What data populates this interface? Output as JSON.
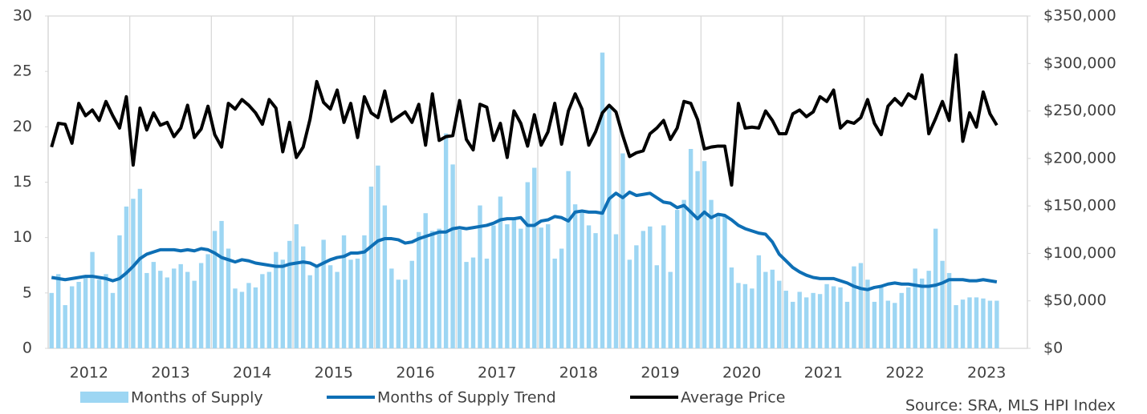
{
  "chart_data": {
    "type": "combo",
    "annotation": "Source: SRA, MLS HPI Index",
    "categories": [
      null,
      null,
      null,
      null,
      null,
      "2012",
      null,
      null,
      null,
      null,
      null,
      null,
      null,
      null,
      null,
      null,
      null,
      "2013",
      null,
      null,
      null,
      null,
      null,
      null,
      null,
      null,
      null,
      null,
      null,
      "2014",
      null,
      null,
      null,
      null,
      null,
      null,
      null,
      null,
      null,
      null,
      null,
      "2015",
      null,
      null,
      null,
      null,
      null,
      null,
      null,
      null,
      null,
      null,
      null,
      "2016",
      null,
      null,
      null,
      null,
      null,
      null,
      null,
      null,
      null,
      null,
      null,
      "2017",
      null,
      null,
      null,
      null,
      null,
      null,
      null,
      null,
      null,
      null,
      null,
      "2018",
      null,
      null,
      null,
      null,
      null,
      null,
      null,
      null,
      null,
      null,
      null,
      "2019",
      null,
      null,
      null,
      null,
      null,
      null,
      null,
      null,
      null,
      null,
      null,
      "2020",
      null,
      null,
      null,
      null,
      null,
      null,
      null,
      null,
      null,
      null,
      null,
      "2021",
      null,
      null,
      null,
      null,
      null,
      null,
      null,
      null,
      null,
      null,
      null,
      "2022",
      null,
      null,
      null,
      null,
      null,
      null,
      null,
      null,
      null,
      null,
      null,
      "2023",
      null,
      null
    ],
    "series": [
      {
        "name": "Months of Supply",
        "type": "bar",
        "color": "#9dd6f3",
        "values": [
          5.0,
          6.7,
          3.9,
          5.6,
          6.0,
          6.5,
          8.7,
          6.2,
          6.7,
          5.0,
          10.2,
          12.8,
          13.5,
          14.4,
          6.8,
          7.8,
          7.0,
          6.4,
          7.2,
          7.6,
          6.9,
          6.1,
          7.7,
          8.5,
          10.6,
          11.5,
          9.0,
          5.4,
          5.1,
          5.9,
          5.5,
          6.7,
          6.9,
          8.7,
          8.0,
          9.7,
          11.2,
          9.2,
          6.6,
          7.4,
          9.8,
          7.5,
          6.9,
          10.2,
          8.0,
          8.1,
          10.2,
          14.6,
          16.5,
          12.9,
          7.2,
          6.2,
          6.2,
          7.9,
          10.5,
          12.2,
          10.6,
          10.8,
          19.4,
          16.6,
          10.7,
          7.8,
          8.2,
          12.9,
          8.1,
          11.1,
          13.7,
          11.2,
          11.6,
          10.8,
          15.0,
          16.3,
          10.9,
          11.2,
          8.1,
          9.0,
          16.0,
          13.0,
          12.4,
          11.1,
          10.4,
          26.7,
          21.8,
          10.3,
          17.6,
          8.0,
          9.3,
          10.6,
          11.0,
          7.5,
          11.1,
          6.9,
          12.5,
          13.4,
          18.0,
          16.0,
          16.9,
          13.4,
          12.0,
          11.9,
          7.3,
          5.9,
          5.8,
          5.4,
          8.4,
          6.9,
          7.1,
          6.1,
          5.2,
          4.2,
          5.1,
          4.6,
          5.0,
          4.9,
          5.8,
          5.6,
          5.5,
          4.2,
          7.4,
          7.7,
          6.2,
          4.2,
          5.5,
          4.3,
          4.1,
          5.0,
          5.5,
          7.2,
          6.3,
          7.0,
          10.8,
          7.9,
          6.8,
          3.9,
          4.4,
          4.6,
          4.6,
          4.5,
          4.3,
          4.3
        ]
      },
      {
        "name": "Months of Supply Trend",
        "type": "line",
        "color": "#0e6fb5",
        "values": [
          6.4,
          6.3,
          6.2,
          6.3,
          6.4,
          6.5,
          6.5,
          6.4,
          6.3,
          6.1,
          6.3,
          6.8,
          7.4,
          8.1,
          8.5,
          8.7,
          8.9,
          8.9,
          8.9,
          8.8,
          8.9,
          8.8,
          9.0,
          8.9,
          8.6,
          8.2,
          8.0,
          7.8,
          8.0,
          7.9,
          7.7,
          7.6,
          7.5,
          7.4,
          7.4,
          7.6,
          7.7,
          7.8,
          7.7,
          7.4,
          7.7,
          8.0,
          8.2,
          8.3,
          8.6,
          8.6,
          8.7,
          9.2,
          9.7,
          9.9,
          9.9,
          9.8,
          9.5,
          9.6,
          9.9,
          10.1,
          10.3,
          10.5,
          10.5,
          10.8,
          10.9,
          10.8,
          10.9,
          11.0,
          11.1,
          11.3,
          11.6,
          11.7,
          11.7,
          11.8,
          11.1,
          11.1,
          11.5,
          11.6,
          11.9,
          11.8,
          11.5,
          12.3,
          12.4,
          12.3,
          12.3,
          12.2,
          13.5,
          14.0,
          13.6,
          14.1,
          13.8,
          13.9,
          14.0,
          13.6,
          13.2,
          13.1,
          12.7,
          12.9,
          12.3,
          11.7,
          12.3,
          11.8,
          12.1,
          12.0,
          11.6,
          11.1,
          10.8,
          10.6,
          10.4,
          10.3,
          9.6,
          8.5,
          7.9,
          7.3,
          6.9,
          6.6,
          6.4,
          6.3,
          6.3,
          6.3,
          6.1,
          5.9,
          5.6,
          5.4,
          5.3,
          5.5,
          5.6,
          5.8,
          5.9,
          5.8,
          5.8,
          5.7,
          5.6,
          5.6,
          5.7,
          5.9,
          6.2,
          6.2,
          6.2,
          6.1,
          6.1,
          6.2,
          6.1,
          6.0
        ]
      },
      {
        "name": "Average Price",
        "type": "line",
        "axis": "y2",
        "color": "#000000",
        "values": [
          212000,
          237000,
          236000,
          216000,
          258000,
          245000,
          251000,
          240000,
          260000,
          245000,
          232000,
          265000,
          193000,
          253000,
          230000,
          248000,
          235000,
          238000,
          223000,
          232000,
          256000,
          222000,
          231000,
          255000,
          225000,
          212000,
          258000,
          252000,
          262000,
          256000,
          248000,
          236000,
          262000,
          253000,
          207000,
          238000,
          201000,
          212000,
          241000,
          281000,
          259000,
          252000,
          272000,
          238000,
          258000,
          222000,
          265000,
          248000,
          243000,
          271000,
          239000,
          244000,
          249000,
          238000,
          257000,
          214000,
          268000,
          219000,
          223000,
          224000,
          261000,
          220000,
          209000,
          257000,
          254000,
          219000,
          237000,
          201000,
          250000,
          237000,
          213000,
          246000,
          214000,
          228000,
          258000,
          215000,
          250000,
          268000,
          252000,
          214000,
          228000,
          248000,
          256000,
          249000,
          224000,
          202000,
          206000,
          208000,
          226000,
          232000,
          240000,
          220000,
          232000,
          260000,
          258000,
          241000,
          210000,
          212000,
          213000,
          213000,
          172000,
          258000,
          232000,
          233000,
          232000,
          250000,
          240000,
          226000,
          226000,
          247000,
          251000,
          244000,
          249000,
          265000,
          260000,
          272000,
          232000,
          239000,
          237000,
          243000,
          262000,
          237000,
          225000,
          255000,
          263000,
          256000,
          268000,
          263000,
          288000,
          226000,
          242000,
          260000,
          240000,
          309000,
          218000,
          248000,
          233000,
          270000,
          247000,
          235000
        ]
      }
    ],
    "ylim": [
      0,
      30
    ],
    "yticks": [
      0,
      5,
      10,
      15,
      20,
      25,
      30
    ],
    "y2lim": [
      0,
      350000
    ],
    "y2ticks": [
      {
        "value": 0,
        "label": "$0"
      },
      {
        "value": 50000,
        "label": "$50,000"
      },
      {
        "value": 100000,
        "label": "$100,000"
      },
      {
        "value": 150000,
        "label": "$150,000"
      },
      {
        "value": 200000,
        "label": "$200,000"
      },
      {
        "value": 250000,
        "label": "$250,000"
      },
      {
        "value": 300000,
        "label": "$300,000"
      },
      {
        "value": 350000,
        "label": "$350,000"
      }
    ],
    "grid": true
  }
}
